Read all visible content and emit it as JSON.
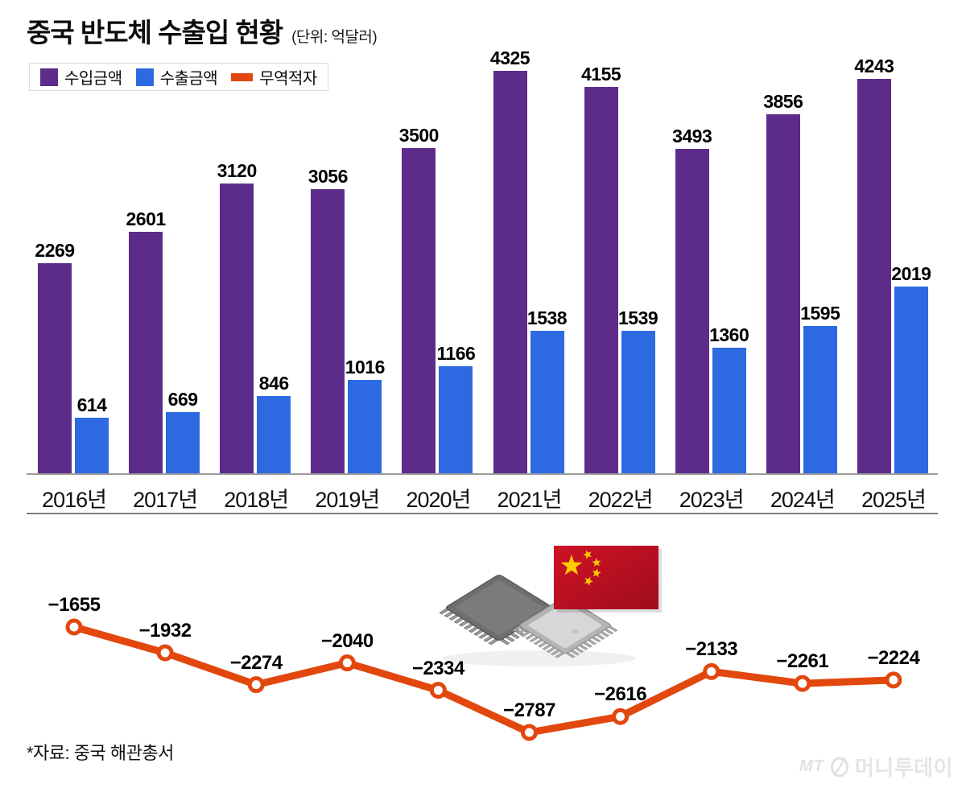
{
  "chart_data": {
    "type": "bar",
    "title": "중국 반도체 수출입 현황",
    "unit_label": "(단위: 억달러)",
    "categories": [
      "2016년",
      "2017년",
      "2018년",
      "2019년",
      "2020년",
      "2021년",
      "2022년",
      "2023년",
      "2024년",
      "2025년"
    ],
    "series": [
      {
        "name": "수입금액",
        "type": "bar",
        "color": "#5d2c8a",
        "values": [
          2269,
          2601,
          3120,
          3056,
          3500,
          4325,
          4155,
          3493,
          3856,
          4243
        ]
      },
      {
        "name": "수출금액",
        "type": "bar",
        "color": "#2d6ae2",
        "values": [
          614,
          669,
          846,
          1016,
          1166,
          1538,
          1539,
          1360,
          1595,
          2019
        ]
      },
      {
        "name": "무역적자",
        "type": "line",
        "color": "#e2470e",
        "values": [
          -1655,
          -1932,
          -2274,
          -2040,
          -2334,
          -2787,
          -2616,
          -2133,
          -2261,
          -2224
        ]
      }
    ],
    "bar_axis_max": 4325,
    "line_axis_range": [
      -2787,
      -1655
    ],
    "grid": false,
    "legend_position": "top-left",
    "value_labels": true
  },
  "illustration": {
    "items": [
      "microchip-pair",
      "china-flag"
    ]
  },
  "source_note": "*자료: 중국 해관총서",
  "watermark": {
    "abbr": "MT",
    "name": "머니투데이"
  }
}
